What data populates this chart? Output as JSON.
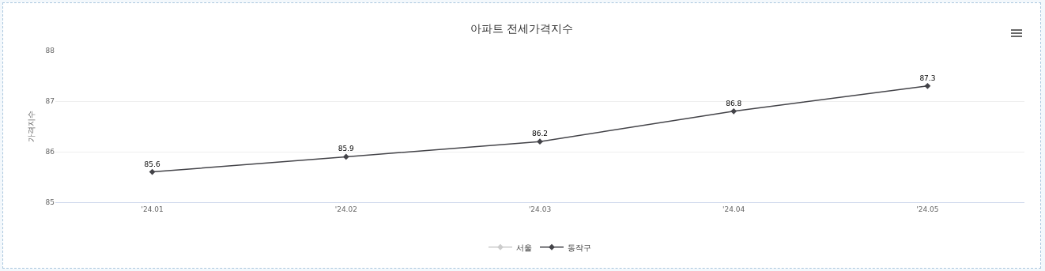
{
  "chart_data": {
    "type": "line",
    "title": "아파트 전세가격지수",
    "ylabel": "가격지수",
    "categories": [
      "'24.01",
      "'24.02",
      "'24.03",
      "'24.04",
      "'24.05"
    ],
    "series": [
      {
        "name": "서울",
        "color": "#cccccc",
        "values": [
          null,
          null,
          null,
          null,
          null
        ]
      },
      {
        "name": "동작구",
        "color": "#434348",
        "values": [
          85.6,
          85.9,
          86.2,
          86.8,
          87.3
        ]
      }
    ],
    "ylim": [
      85,
      88
    ],
    "yticks": [
      85,
      86,
      87,
      88
    ],
    "grid": "y",
    "legend": "bottom",
    "marker": "diamond",
    "line_style": "solid",
    "data_labels": true
  }
}
